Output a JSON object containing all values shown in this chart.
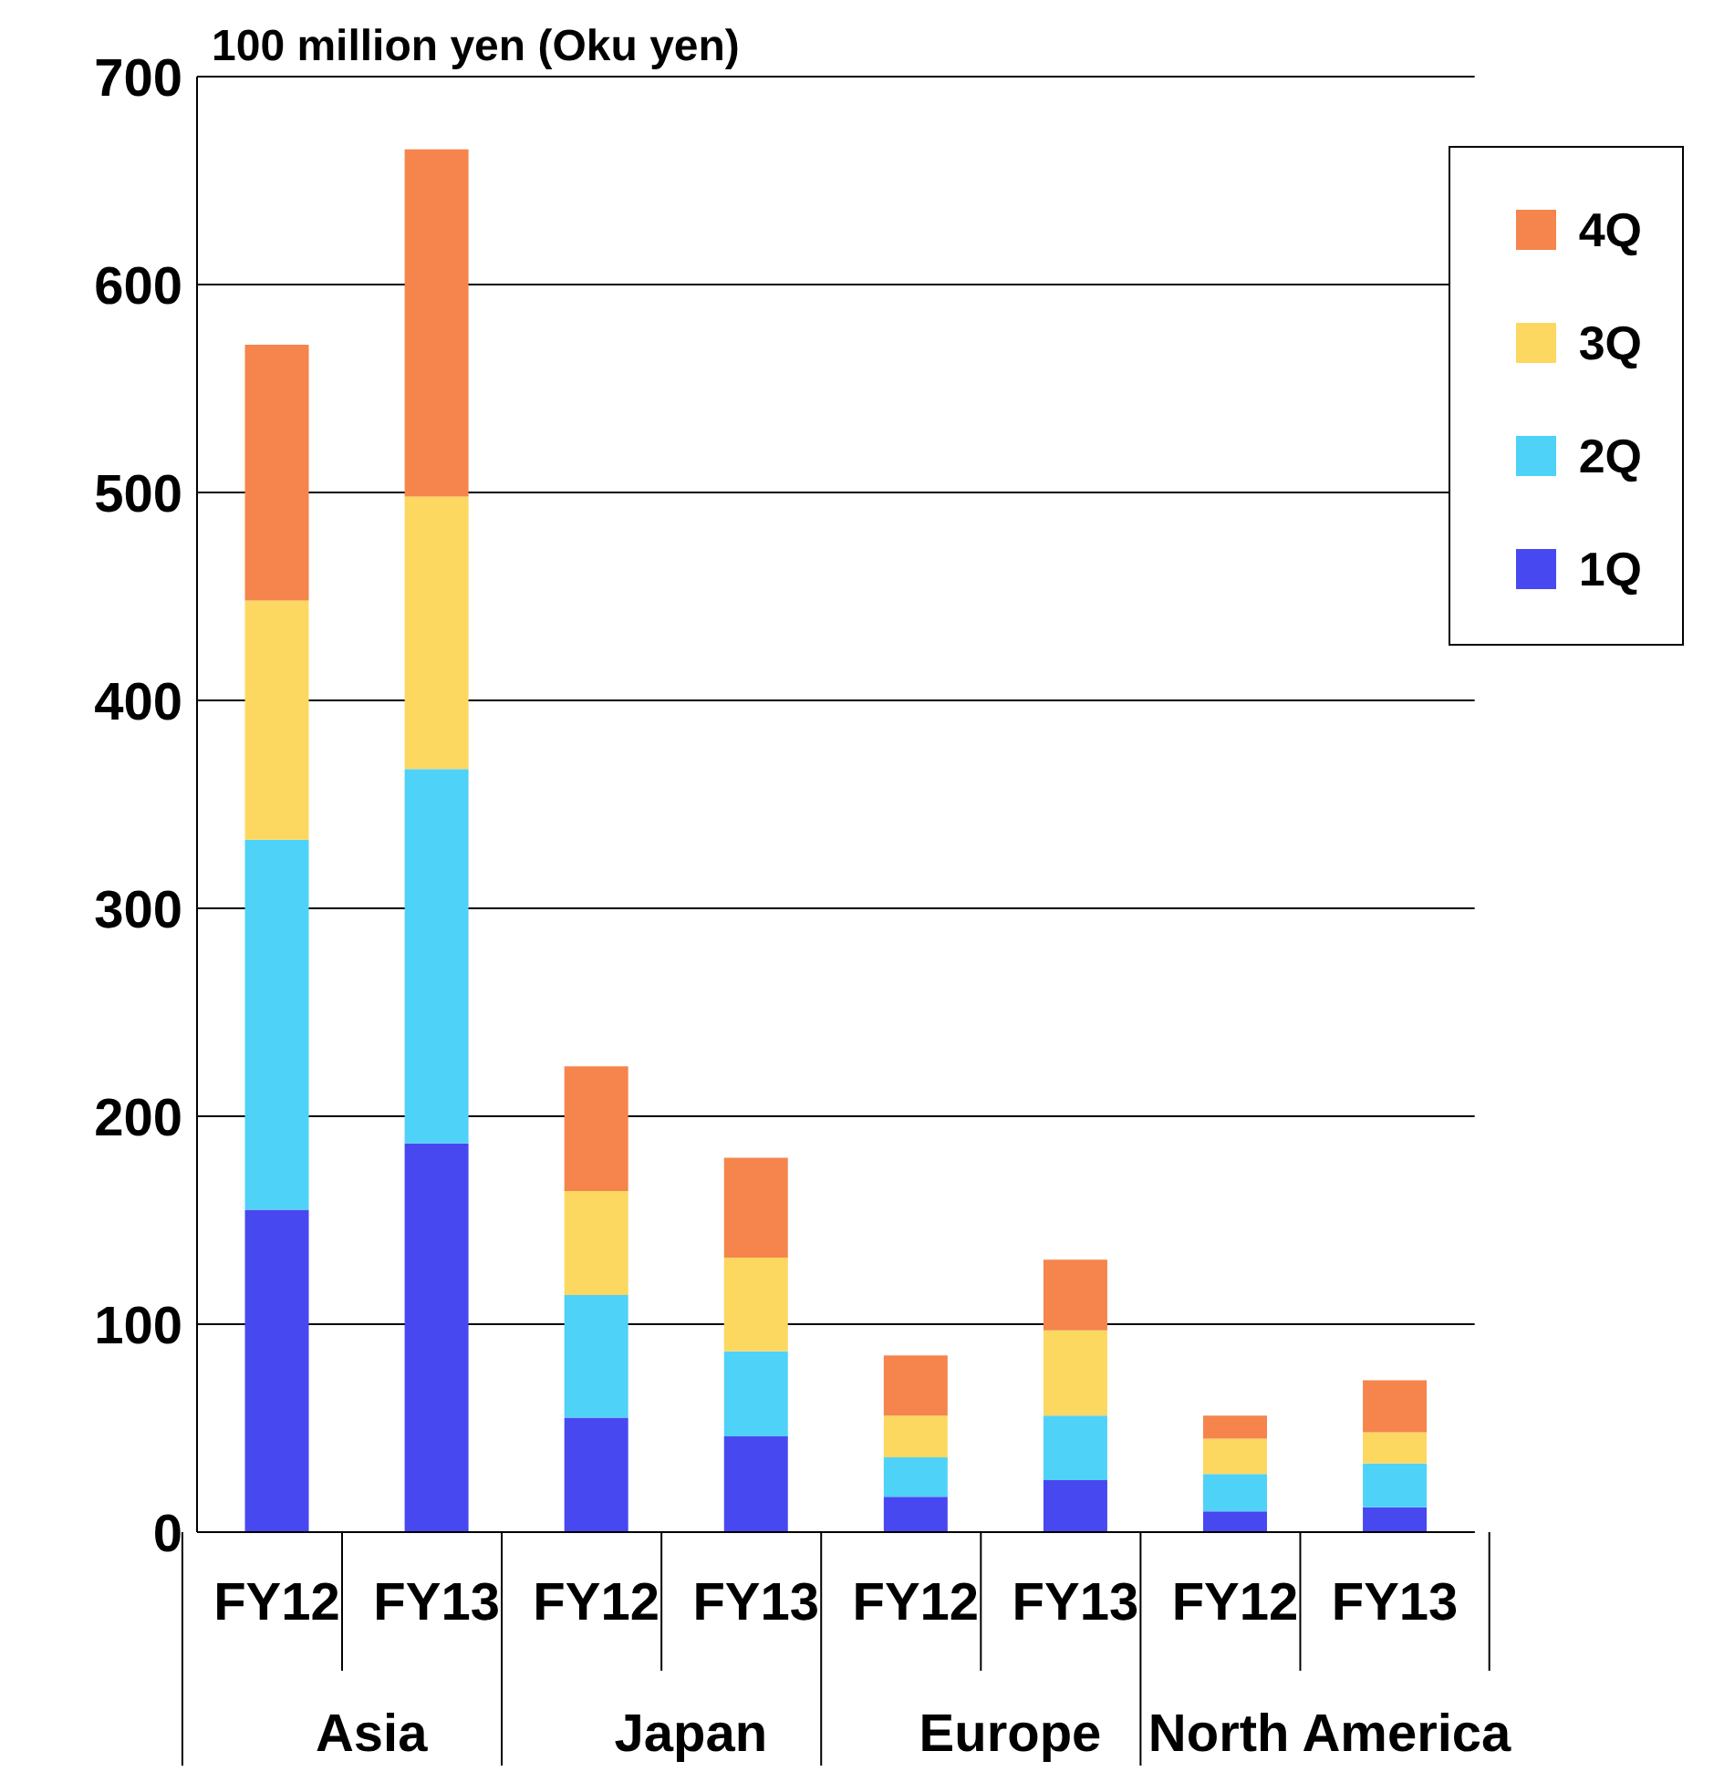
{
  "chart_data": {
    "type": "bar",
    "ylabel": "100 million yen (Oku yen)",
    "stacked": true,
    "categories": [
      "FY12",
      "FY13",
      "FY12",
      "FY13",
      "FY12",
      "FY13",
      "FY12",
      "FY13"
    ],
    "series": [
      {
        "name": "1Q",
        "color": "#4848f0",
        "values": [
          155,
          187,
          55,
          46,
          17,
          25,
          10,
          12
        ]
      },
      {
        "name": "2Q",
        "color": "#4fd2f7",
        "values": [
          178,
          180,
          59,
          41,
          19,
          31,
          18,
          21
        ]
      },
      {
        "name": "3Q",
        "color": "#fcd860",
        "values": [
          115,
          131,
          50,
          45,
          20,
          41,
          17,
          15
        ]
      },
      {
        "name": "4Q",
        "color": "#f5854c",
        "values": [
          123,
          167,
          60,
          48,
          29,
          34,
          11,
          25
        ]
      }
    ],
    "annotations": [
      "Asia",
      "Japan",
      "Europe",
      "North America"
    ],
    "ylim": [
      0,
      700
    ],
    "yticks": [
      0,
      100,
      200,
      300,
      400,
      500,
      600,
      700
    ],
    "grid": "y",
    "legend": "top right"
  }
}
